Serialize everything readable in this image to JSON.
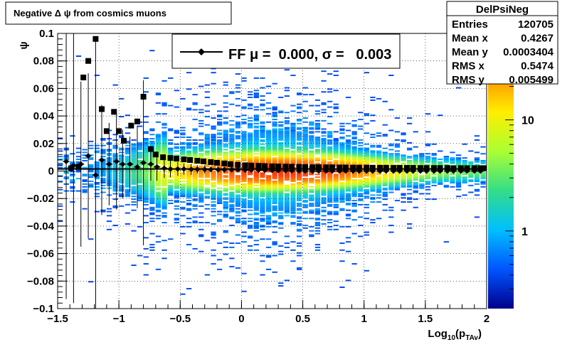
{
  "title_box": {
    "text": "Negative Δ ψ from cosmics muons"
  },
  "stats_box": {
    "name": "DelPsiNeg",
    "rows": [
      {
        "label": "Entries",
        "value": "120705"
      },
      {
        "label": "Mean x",
        "value": "0.4267"
      },
      {
        "label": "Mean y",
        "value": "0.0003404"
      },
      {
        "label": "RMS x",
        "value": "0.5474"
      },
      {
        "label": "RMS y",
        "value": "0.005499"
      }
    ]
  },
  "legend": {
    "entry": "FF μ =  0.000, σ =   0.003"
  },
  "colors": {
    "frame": "#000000",
    "markers": "#000000",
    "grid": "#000000",
    "palette": [
      "#00008b",
      "#0055ff",
      "#00bfff",
      "#33dd88",
      "#aaff33",
      "#ffee00",
      "#ff8800",
      "#ff3300"
    ]
  },
  "chart_data": {
    "type": "heatmap",
    "title": "",
    "xlabel": "Log10(pTAv)",
    "xlabel_parts": {
      "main": "Log",
      "sub1": "10",
      "open": "(p",
      "sub2": "TAv",
      "close": ")"
    },
    "ylabel": "ψ",
    "xlim": [
      -1.5,
      2.0
    ],
    "ylim": [
      -0.1,
      0.1
    ],
    "x_ticks": [
      -1.5,
      -1,
      -0.5,
      0,
      0.5,
      1,
      1.5,
      2
    ],
    "x_tick_labels": [
      "−1.5",
      "−1",
      "−0.5",
      "0",
      "0.5",
      "1",
      "1.5",
      "2"
    ],
    "y_ticks": [
      -0.1,
      -0.08,
      -0.06,
      -0.04,
      -0.02,
      0,
      0.02,
      0.04,
      0.06,
      0.08,
      0.1
    ],
    "y_tick_labels": [
      "−0.1",
      "−0.08",
      "−0.06",
      "−0.04",
      "−0.02",
      "0",
      "0.02",
      "0.04",
      "0.06",
      "0.08",
      "0.1"
    ],
    "grid": true,
    "colorbar": {
      "scale": "log",
      "labels": [
        "1",
        "10"
      ],
      "label_values": [
        1,
        10
      ],
      "range": [
        0.2,
        60
      ]
    },
    "entries": 120705,
    "series": [
      {
        "marker": "square",
        "points": [
          {
            "x": -1.39,
            "y": 0.002
          },
          {
            "x": -1.33,
            "y": 0.003
          },
          {
            "x": -1.29,
            "y": 0.068
          },
          {
            "x": -1.25,
            "y": 0.08
          },
          {
            "x": -1.19,
            "y": 0.096
          },
          {
            "x": -1.14,
            "y": 0.045
          },
          {
            "x": -1.1,
            "y": 0.029
          },
          {
            "x": -1.04,
            "y": 0.043
          },
          {
            "x": -1.0,
            "y": 0.029
          },
          {
            "x": -0.96,
            "y": 0.022
          },
          {
            "x": -0.9,
            "y": 0.033
          },
          {
            "x": -0.85,
            "y": 0.036
          },
          {
            "x": -0.8,
            "y": 0.054
          },
          {
            "x": -0.74,
            "y": 0.016
          },
          {
            "x": -0.7,
            "y": 0.012
          },
          {
            "x": -0.64,
            "y": 0.01
          },
          {
            "x": -0.58,
            "y": 0.0095
          },
          {
            "x": -0.53,
            "y": 0.009
          },
          {
            "x": -0.47,
            "y": 0.0085
          },
          {
            "x": -0.42,
            "y": 0.008
          },
          {
            "x": -0.36,
            "y": 0.0075
          },
          {
            "x": -0.31,
            "y": 0.007
          },
          {
            "x": -0.25,
            "y": 0.0065
          },
          {
            "x": -0.2,
            "y": 0.006
          },
          {
            "x": -0.14,
            "y": 0.0055
          },
          {
            "x": -0.09,
            "y": 0.005
          },
          {
            "x": -0.03,
            "y": 0.0045
          },
          {
            "x": 0.03,
            "y": 0.0042
          },
          {
            "x": 0.08,
            "y": 0.004
          },
          {
            "x": 0.14,
            "y": 0.0038
          },
          {
            "x": 0.19,
            "y": 0.0036
          },
          {
            "x": 0.25,
            "y": 0.0034
          },
          {
            "x": 0.3,
            "y": 0.0033
          },
          {
            "x": 0.36,
            "y": 0.0032
          },
          {
            "x": 0.41,
            "y": 0.0031
          },
          {
            "x": 0.47,
            "y": 0.003
          },
          {
            "x": 0.52,
            "y": 0.0029
          },
          {
            "x": 0.58,
            "y": 0.0028
          },
          {
            "x": 0.63,
            "y": 0.0028
          },
          {
            "x": 0.69,
            "y": 0.0027
          },
          {
            "x": 0.74,
            "y": 0.0027
          },
          {
            "x": 0.8,
            "y": 0.0026
          },
          {
            "x": 0.85,
            "y": 0.0026
          },
          {
            "x": 0.91,
            "y": 0.0025
          },
          {
            "x": 0.96,
            "y": 0.0025
          },
          {
            "x": 1.02,
            "y": 0.0025
          },
          {
            "x": 1.07,
            "y": 0.0024
          },
          {
            "x": 1.13,
            "y": 0.0024
          },
          {
            "x": 1.18,
            "y": 0.0024
          },
          {
            "x": 1.24,
            "y": 0.0023
          },
          {
            "x": 1.29,
            "y": 0.0023
          },
          {
            "x": 1.35,
            "y": 0.0023
          },
          {
            "x": 1.4,
            "y": 0.0023
          },
          {
            "x": 1.46,
            "y": 0.0022
          },
          {
            "x": 1.51,
            "y": 0.0022
          },
          {
            "x": 1.57,
            "y": 0.0022
          },
          {
            "x": 1.62,
            "y": 0.0022
          },
          {
            "x": 1.68,
            "y": 0.0022
          },
          {
            "x": 1.73,
            "y": 0.0021
          },
          {
            "x": 1.79,
            "y": 0.0021
          },
          {
            "x": 1.84,
            "y": 0.0021
          },
          {
            "x": 1.9,
            "y": 0.0021
          },
          {
            "x": 1.95,
            "y": 0.0021
          },
          {
            "x": 1.99,
            "y": 0.0021
          }
        ]
      },
      {
        "marker": "diamond",
        "points": [
          {
            "x": -1.43,
            "y": 0.007,
            "err": 0.1
          },
          {
            "x": -1.37,
            "y": 0.004,
            "err": 0.1
          },
          {
            "x": -1.31,
            "y": 0.005,
            "err": 0.06
          },
          {
            "x": -1.25,
            "y": 0.011,
            "err": 0.06
          },
          {
            "x": -1.19,
            "y": -0.003,
            "err": 0.1
          },
          {
            "x": -1.14,
            "y": 0.008,
            "err": 0.04
          },
          {
            "x": -1.08,
            "y": 0.005,
            "err": 0.03
          },
          {
            "x": -1.02,
            "y": 0.007,
            "err": 0.035
          },
          {
            "x": -0.97,
            "y": 0.005,
            "err": 0.025
          },
          {
            "x": -0.91,
            "y": 0.005,
            "err": 0.02
          },
          {
            "x": -0.85,
            "y": 0.003,
            "err": 0.03
          },
          {
            "x": -0.8,
            "y": 0.006,
            "err": 0.06
          },
          {
            "x": -0.74,
            "y": 0.005,
            "err": 0.012
          },
          {
            "x": -0.69,
            "y": 0.003,
            "err": 0.01
          },
          {
            "x": -0.63,
            "y": 0.002,
            "err": 0.007
          },
          {
            "x": -0.58,
            "y": 0.0015,
            "err": 0.006
          },
          {
            "x": -0.52,
            "y": 0.0015,
            "err": 0.005
          },
          {
            "x": -0.47,
            "y": 0.0015,
            "err": 0.004
          },
          {
            "x": -0.41,
            "y": 0.0012,
            "err": 0.004
          },
          {
            "x": -0.36,
            "y": 0.0012,
            "err": 0.003
          },
          {
            "x": -0.3,
            "y": 0.0012,
            "err": 0.003
          },
          {
            "x": -0.25,
            "y": 0.0011,
            "err": 0.002
          },
          {
            "x": -0.19,
            "y": 0.001,
            "err": 0.002
          },
          {
            "x": -0.14,
            "y": 0.001,
            "err": 0.002
          },
          {
            "x": -0.08,
            "y": 0.001,
            "err": 0.002
          },
          {
            "x": -0.03,
            "y": 0.001,
            "err": 0.002
          },
          {
            "x": 0.03,
            "y": 0.0008,
            "err": 0.002
          },
          {
            "x": 0.08,
            "y": 0.0008,
            "err": 0.001
          },
          {
            "x": 0.14,
            "y": 0.0007,
            "err": 0.001
          },
          {
            "x": 0.19,
            "y": 0.0006,
            "err": 0.001
          },
          {
            "x": 0.25,
            "y": 0.0005,
            "err": 0.001
          },
          {
            "x": 0.3,
            "y": 0.0004,
            "err": 0.001
          },
          {
            "x": 0.36,
            "y": 0.0003,
            "err": 0.001
          },
          {
            "x": 0.41,
            "y": 0.0002,
            "err": 0.001
          },
          {
            "x": 0.47,
            "y": 0.0001,
            "err": 0.001
          },
          {
            "x": 0.52,
            "y": 0.0,
            "err": 0.001
          },
          {
            "x": 0.58,
            "y": 0.0,
            "err": 0.001
          },
          {
            "x": 0.63,
            "y": 0.0,
            "err": 0.001
          },
          {
            "x": 0.69,
            "y": 0.0,
            "err": 0.001
          },
          {
            "x": 0.74,
            "y": 0.0,
            "err": 0.001
          },
          {
            "x": 0.8,
            "y": 0.0,
            "err": 0.001
          },
          {
            "x": 0.85,
            "y": 0.0,
            "err": 0.001
          },
          {
            "x": 0.91,
            "y": 0.0,
            "err": 0.001
          },
          {
            "x": 0.96,
            "y": 0.0,
            "err": 0.001
          },
          {
            "x": 1.02,
            "y": 0.0,
            "err": 0.001
          },
          {
            "x": 1.07,
            "y": 0.0,
            "err": 0.001
          },
          {
            "x": 1.13,
            "y": 0.0,
            "err": 0.001
          },
          {
            "x": 1.18,
            "y": 0.0,
            "err": 0.001
          },
          {
            "x": 1.24,
            "y": 0.0,
            "err": 0.001
          },
          {
            "x": 1.29,
            "y": 0.0,
            "err": 0.001
          },
          {
            "x": 1.35,
            "y": 0.0,
            "err": 0.001
          },
          {
            "x": 1.4,
            "y": 0.0,
            "err": 0.001
          },
          {
            "x": 1.46,
            "y": 0.0,
            "err": 0.001
          },
          {
            "x": 1.51,
            "y": 0.0,
            "err": 0.001
          },
          {
            "x": 1.57,
            "y": 0.0,
            "err": 0.001
          },
          {
            "x": 1.62,
            "y": 0.0,
            "err": 0.001
          },
          {
            "x": 1.68,
            "y": 0.0,
            "err": 0.001
          },
          {
            "x": 1.73,
            "y": 0.0,
            "err": 0.001
          },
          {
            "x": 1.79,
            "y": 0.0,
            "err": 0.001
          },
          {
            "x": 1.84,
            "y": 0.0,
            "err": 0.001
          },
          {
            "x": 1.9,
            "y": 0.0,
            "err": 0.001
          },
          {
            "x": 1.95,
            "y": 0.0,
            "err": 0.001
          }
        ]
      }
    ]
  }
}
